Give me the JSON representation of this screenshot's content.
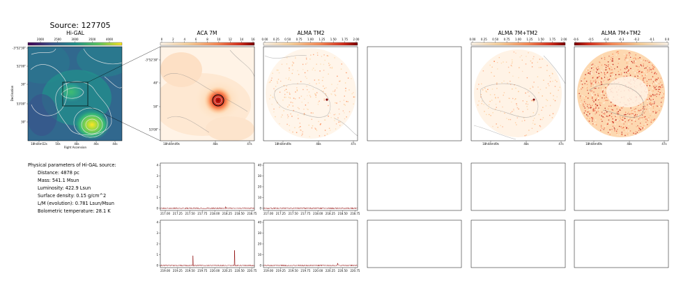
{
  "source_title": "Source: 127705",
  "params": {
    "header": "Physical parameters of Hi-GAL source:",
    "lines": [
      "Distance: 4878 pc",
      "Mass: 541.1 Msun",
      "Luminosity: 422.9 Lsun",
      "Surface density: 0.15 g/cm^2",
      "L/M (evolution): 0.781 Lsun/Msun",
      "Bolometric temperature: 28.1 K"
    ]
  },
  "chart_data": [
    {
      "type": "heatmap",
      "title": "Hi-GAL",
      "colormap": "viridis",
      "colorbar_ticks": [
        "2000",
        "2500",
        "3000",
        "3500",
        "4000"
      ],
      "ytick_labels": [
        "-3°52'30\"",
        "52'00\"",
        "30\"",
        "53'00\"",
        "30\""
      ],
      "xtick_labels": [
        "18h44m52s",
        "50s",
        "48s",
        "46s",
        "44s"
      ],
      "xlabel": "Right Ascension",
      "ylabel": "Declination",
      "zoom_box": true
    },
    {
      "type": "heatmap",
      "title": "ACA 7M",
      "colormap": "OrRd",
      "colorbar_ticks": [
        "0",
        "2",
        "4",
        "6",
        "8",
        "10",
        "12",
        "14",
        "16"
      ],
      "ytick_labels": [
        "-3°52'30\"",
        "40\"",
        "50\"",
        "53'00\""
      ],
      "xtick_labels": [
        "18h44m49s",
        "48s",
        "47s"
      ]
    },
    {
      "type": "heatmap",
      "title": "ALMA TM2",
      "colormap": "OrRd",
      "colorbar_ticks": [
        "0.00",
        "0.25",
        "0.50",
        "0.75",
        "1.00",
        "1.25",
        "1.50",
        "1.75",
        "2.00"
      ],
      "xtick_labels": [
        "18h44m49s",
        "48s",
        "47s"
      ]
    },
    {
      "type": "heatmap",
      "title": "",
      "empty": true
    },
    {
      "type": "heatmap",
      "title": "ALMA 7M+TM2",
      "colormap": "OrRd",
      "colorbar_ticks": [
        "0.00",
        "0.25",
        "0.50",
        "0.75",
        "1.00",
        "1.25",
        "1.50",
        "1.75",
        "2.00"
      ],
      "xtick_labels": [
        "18h44m49s",
        "48s",
        "47s"
      ]
    },
    {
      "type": "heatmap",
      "title": "ALMA 7M+TM2",
      "colormap": "OrRd",
      "colorbar_ticks": [
        "-0.6",
        "-0.5",
        "-0.4",
        "-0.3",
        "-0.2",
        "-0.1",
        "0.0"
      ],
      "xtick_labels": [
        "18h44m49s",
        "48s",
        "47s"
      ]
    },
    {
      "type": "line",
      "name": "spectrum-aca-1",
      "x_range": [
        216.9,
        218.8
      ],
      "xtick_labels": [
        "217.00",
        "217.25",
        "217.50",
        "217.75",
        "218.00",
        "218.25",
        "218.50",
        "218.75"
      ],
      "ylim": [
        0,
        4
      ],
      "ytick_labels": [
        "0",
        "1",
        "2",
        "3",
        "4"
      ],
      "baseline": 0.0,
      "spikes": [
        {
          "x": 218.22,
          "y": 0.15
        }
      ]
    },
    {
      "type": "line",
      "name": "spectrum-alma-1",
      "x_range": [
        216.9,
        218.8
      ],
      "xtick_labels": [
        "217.00",
        "217.25",
        "217.50",
        "217.75",
        "218.00",
        "218.25",
        "218.50",
        "218.75"
      ],
      "ylim": [
        0,
        40
      ],
      "ytick_labels": [
        "0",
        "10",
        "20",
        "30",
        "40"
      ],
      "baseline": 0.0,
      "spikes": []
    },
    {
      "type": "line",
      "name": "spectrum-aca-2",
      "x_range": [
        218.9,
        220.8
      ],
      "xtick_labels": [
        "219.00",
        "219.25",
        "219.50",
        "219.75",
        "220.00",
        "220.25",
        "220.50",
        "220.75"
      ],
      "ylim": [
        0,
        4
      ],
      "ytick_labels": [
        "0",
        "1",
        "2",
        "3",
        "4"
      ],
      "baseline": 0.0,
      "spikes": [
        {
          "x": 219.56,
          "y": 0.9
        },
        {
          "x": 220.4,
          "y": 1.4
        }
      ]
    },
    {
      "type": "line",
      "name": "spectrum-alma-2",
      "x_range": [
        218.9,
        220.8
      ],
      "xtick_labels": [
        "219.00",
        "219.25",
        "219.50",
        "219.75",
        "220.00",
        "220.25",
        "220.50",
        "220.75"
      ],
      "ylim": [
        0,
        40
      ],
      "ytick_labels": [
        "0",
        "10",
        "20",
        "30",
        "40"
      ],
      "baseline": 0.0,
      "spikes": [
        {
          "x": 220.4,
          "y": 2.0
        }
      ]
    }
  ]
}
